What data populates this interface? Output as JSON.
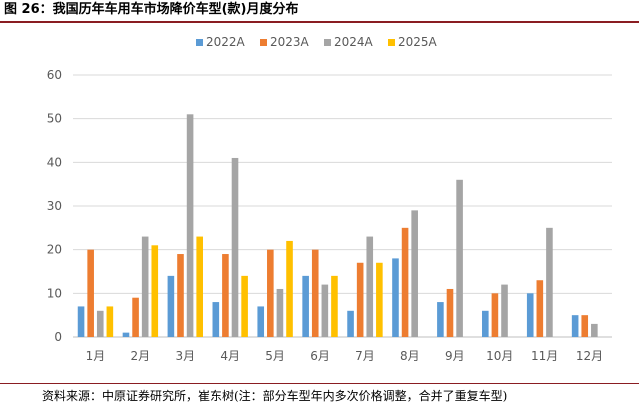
{
  "figure": {
    "title": "图 26：我国历年车用车市场降价车型(款)月度分布",
    "source": "资料来源：中原证券研究所，崔东树(注：部分车型年内多次价格调整，合并了重复车型)"
  },
  "chart_data": {
    "type": "bar",
    "categories": [
      "1月",
      "2月",
      "3月",
      "4月",
      "5月",
      "6月",
      "7月",
      "8月",
      "9月",
      "10月",
      "11月",
      "12月"
    ],
    "series": [
      {
        "name": "2022A",
        "color": "#5b9bd5",
        "values": [
          7,
          1,
          14,
          8,
          7,
          14,
          6,
          18,
          8,
          6,
          10,
          5
        ]
      },
      {
        "name": "2023A",
        "color": "#ed7d31",
        "values": [
          20,
          9,
          19,
          19,
          20,
          20,
          17,
          25,
          11,
          10,
          13,
          5
        ]
      },
      {
        "name": "2024A",
        "color": "#a5a5a5",
        "values": [
          6,
          23,
          51,
          41,
          11,
          12,
          23,
          29,
          36,
          12,
          25,
          3
        ]
      },
      {
        "name": "2025A",
        "color": "#ffc000",
        "values": [
          7,
          21,
          23,
          14,
          22,
          14,
          17,
          null,
          null,
          null,
          null,
          null
        ]
      }
    ],
    "y_ticks": [
      "0",
      "10",
      "20",
      "30",
      "40",
      "50",
      "60"
    ],
    "ylim": [
      0,
      60
    ],
    "grid": true,
    "legend": "top-center",
    "title": "",
    "xlabel": "",
    "ylabel": ""
  }
}
